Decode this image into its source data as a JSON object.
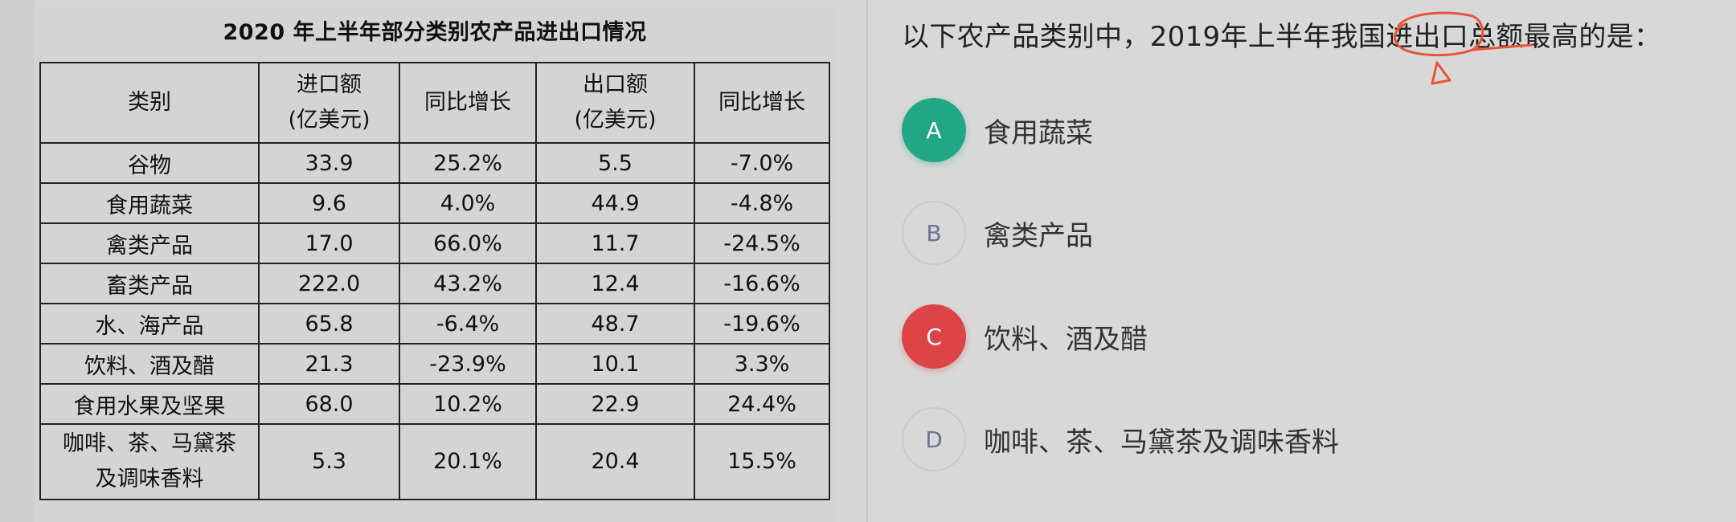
{
  "table": {
    "title": "2020 年上半年部分类别农产品进出口情况",
    "headers": {
      "category": "类别",
      "import_line1": "进口额",
      "import_line2": "(亿美元)",
      "import_growth": "同比增长",
      "export_line1": "出口额",
      "export_line2": "(亿美元)",
      "export_growth": "同比增长"
    },
    "rows": [
      {
        "category": "谷物",
        "import": "33.9",
        "import_growth": "25.2%",
        "export": "5.5",
        "export_growth": "-7.0%"
      },
      {
        "category": "食用蔬菜",
        "import": "9.6",
        "import_growth": "4.0%",
        "export": "44.9",
        "export_growth": "-4.8%"
      },
      {
        "category": "禽类产品",
        "import": "17.0",
        "import_growth": "66.0%",
        "export": "11.7",
        "export_growth": "-24.5%"
      },
      {
        "category": "畜类产品",
        "import": "222.0",
        "import_growth": "43.2%",
        "export": "12.4",
        "export_growth": "-16.6%"
      },
      {
        "category": "水、海产品",
        "import": "65.8",
        "import_growth": "-6.4%",
        "export": "48.7",
        "export_growth": "-19.6%"
      },
      {
        "category": "饮料、酒及醋",
        "import": "21.3",
        "import_growth": "-23.9%",
        "export": "10.1",
        "export_growth": "3.3%"
      },
      {
        "category": "食用水果及坚果",
        "import": "68.0",
        "import_growth": "10.2%",
        "export": "22.9",
        "export_growth": "24.4%"
      },
      {
        "category_line1": "咖啡、茶、马黛茶",
        "category_line2": "及调味香料",
        "import": "5.3",
        "import_growth": "20.1%",
        "export": "20.4",
        "export_growth": "15.5%"
      }
    ]
  },
  "question": {
    "text": "以下农产品类别中，2019年上半年我国进出口总额最高的是："
  },
  "options": [
    {
      "letter": "A",
      "text": "食用蔬菜",
      "state": "correct"
    },
    {
      "letter": "B",
      "text": "禽类产品",
      "state": "neutral"
    },
    {
      "letter": "C",
      "text": "饮料、酒及醋",
      "state": "wrong"
    },
    {
      "letter": "D",
      "text": "咖啡、茶、马黛茶及调味香料",
      "state": "neutral"
    }
  ],
  "colors": {
    "correct": "#23a683",
    "wrong": "#dc4446",
    "annotation": "#e8533a"
  }
}
